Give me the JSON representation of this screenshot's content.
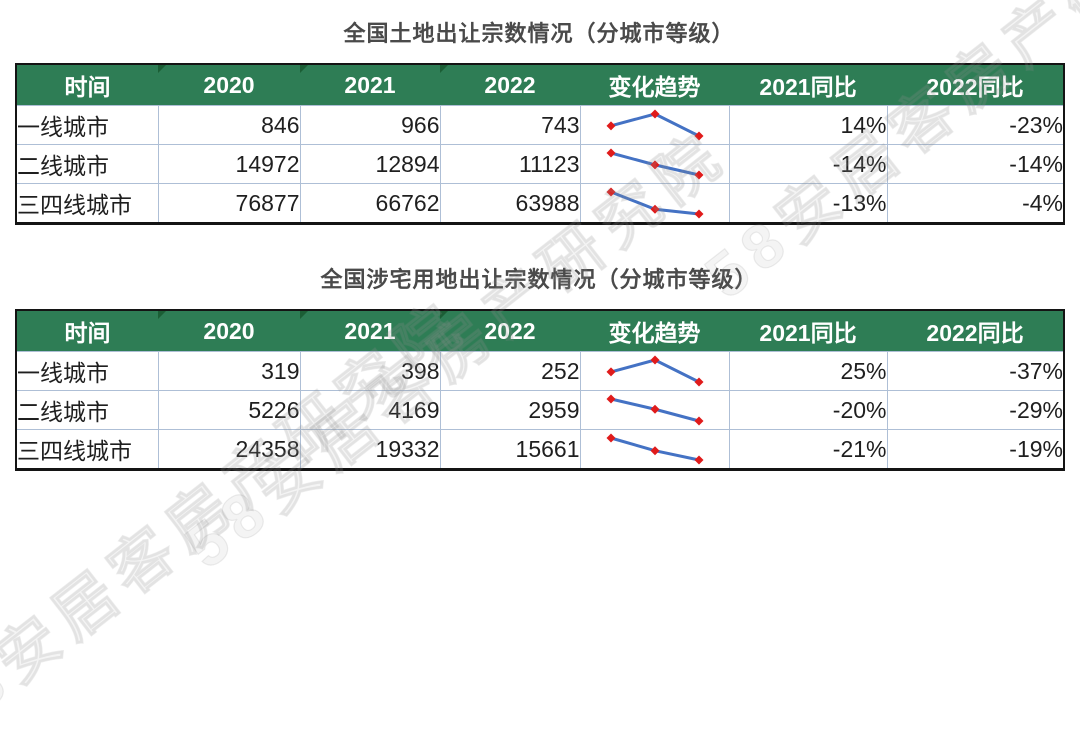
{
  "colors": {
    "header_bg": "#2E7D55",
    "header_text": "#FFFFFF",
    "corner_mark": "#1B5E35",
    "inner_border": "#AEBFD6",
    "outer_border": "#141414",
    "spark_line": "#4472C4",
    "spark_marker": "#E01B1B",
    "title_text": "#4A4A4A"
  },
  "watermark": {
    "text": "58安居客房产研究院"
  },
  "tables": [
    {
      "title": "全国土地出让宗数情况（分城市等级）",
      "headers": [
        "时间",
        "2020",
        "2021",
        "2022",
        "变化趋势",
        "2021同比",
        "2022同比"
      ],
      "rows": [
        {
          "label": "一线城市",
          "display": [
            "846",
            "966",
            "743"
          ],
          "trend": [
            846,
            966,
            743
          ],
          "yoy2021": "14%",
          "yoy2022": "-23%"
        },
        {
          "label": "二线城市",
          "display": [
            "14972",
            "12894",
            "11123"
          ],
          "trend": [
            14972,
            12894,
            11123
          ],
          "yoy2021": "-14%",
          "yoy2022": "-14%"
        },
        {
          "label": "三四线城市",
          "display": [
            "76877",
            "66762",
            "63988"
          ],
          "trend": [
            76877,
            66762,
            63988
          ],
          "yoy2021": "-13%",
          "yoy2022": "-4%"
        }
      ]
    },
    {
      "title": "全国涉宅用地出让宗数情况（分城市等级）",
      "headers": [
        "时间",
        "2020",
        "2021",
        "2022",
        "变化趋势",
        "2021同比",
        "2022同比"
      ],
      "rows": [
        {
          "label": "一线城市",
          "display": [
            "319",
            "398",
            "252"
          ],
          "trend": [
            319,
            398,
            252
          ],
          "yoy2021": "25%",
          "yoy2022": "-37%"
        },
        {
          "label": "二线城市",
          "display": [
            "5226",
            "4169",
            "2959"
          ],
          "trend": [
            5226,
            4169,
            2959
          ],
          "yoy2021": "-20%",
          "yoy2022": "-29%"
        },
        {
          "label": "三四线城市",
          "display": [
            "24358",
            "19332",
            "15661"
          ],
          "trend": [
            24358,
            19332,
            15661
          ],
          "yoy2021": "-21%",
          "yoy2022": "-19%"
        }
      ]
    }
  ],
  "chart_data": [
    {
      "type": "table",
      "title": "全国土地出让宗数情况（分城市等级）",
      "columns": [
        "时间",
        "2020",
        "2021",
        "2022",
        "变化趋势",
        "2021同比",
        "2022同比"
      ],
      "x": [
        "2020",
        "2021",
        "2022"
      ],
      "series": [
        {
          "name": "一线城市",
          "values": [
            846,
            966,
            743
          ]
        },
        {
          "name": "二线城市",
          "values": [
            14972,
            12894,
            11123
          ]
        },
        {
          "name": "三四线城市",
          "values": [
            76877,
            66762,
            63988
          ]
        }
      ],
      "yoy_2021": [
        "14%",
        "-14%",
        "-13%"
      ],
      "yoy_2022": [
        "-23%",
        "-14%",
        "-4%"
      ],
      "sparkline_type": "line",
      "legend_position": "none",
      "grid": false
    },
    {
      "type": "table",
      "title": "全国涉宅用地出让宗数情况（分城市等级）",
      "columns": [
        "时间",
        "2020",
        "2021",
        "2022",
        "变化趋势",
        "2021同比",
        "2022同比"
      ],
      "x": [
        "2020",
        "2021",
        "2022"
      ],
      "series": [
        {
          "name": "一线城市",
          "values": [
            319,
            398,
            252
          ]
        },
        {
          "name": "二线城市",
          "values": [
            5226,
            4169,
            2959
          ]
        },
        {
          "name": "三四线城市",
          "values": [
            24358,
            19332,
            15661
          ]
        }
      ],
      "yoy_2021": [
        "25%",
        "-20%",
        "-21%"
      ],
      "yoy_2022": [
        "-37%",
        "-29%",
        "-19%"
      ],
      "sparkline_type": "line",
      "legend_position": "none",
      "grid": false
    }
  ]
}
